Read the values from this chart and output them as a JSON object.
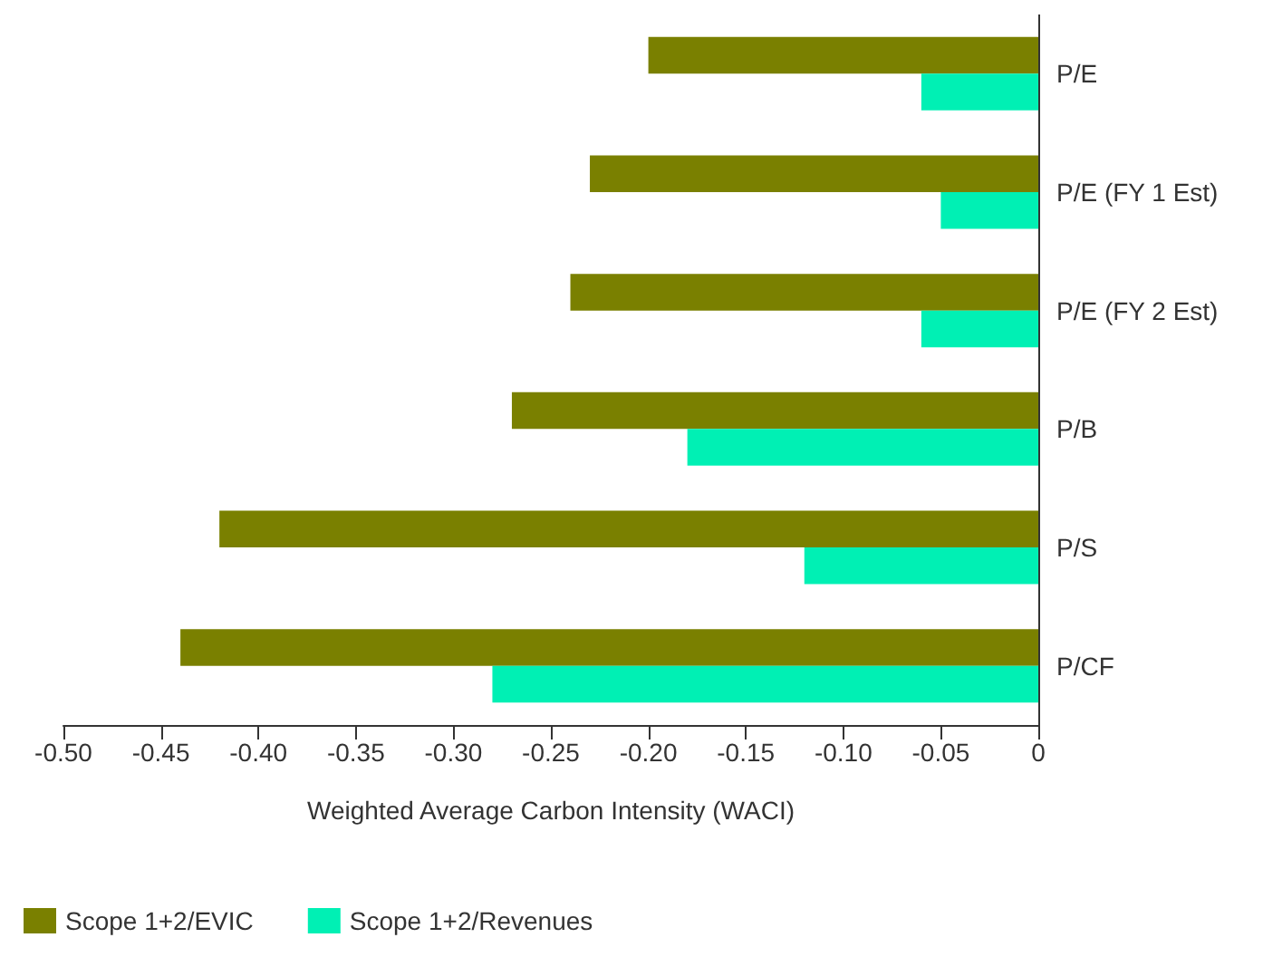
{
  "chart_data": {
    "type": "bar",
    "orientation": "horizontal",
    "xlabel": "Weighted Average Carbon Intensity (WACI)",
    "categories": [
      "P/E",
      "P/E (FY 1 Est)",
      "P/E (FY 2 Est)",
      "P/B",
      "P/S",
      "P/CF"
    ],
    "series": [
      {
        "name": "Scope 1+2/EVIC",
        "color": "#7a8000",
        "values": [
          -0.2,
          -0.23,
          -0.24,
          -0.27,
          -0.42,
          -0.44
        ]
      },
      {
        "name": "Scope 1+2/Revenues",
        "color": "#00f0b4",
        "values": [
          -0.06,
          -0.05,
          -0.06,
          -0.18,
          -0.12,
          -0.28
        ]
      }
    ],
    "xlim": [
      -0.5,
      0
    ],
    "xticks": [
      {
        "value": -0.5,
        "label": "-0.50"
      },
      {
        "value": -0.45,
        "label": "-0.45"
      },
      {
        "value": -0.4,
        "label": "-0.40"
      },
      {
        "value": -0.35,
        "label": "-0.35"
      },
      {
        "value": -0.3,
        "label": "-0.30"
      },
      {
        "value": -0.25,
        "label": "-0.25"
      },
      {
        "value": -0.2,
        "label": "-0.20"
      },
      {
        "value": -0.15,
        "label": "-0.15"
      },
      {
        "value": -0.1,
        "label": "-0.10"
      },
      {
        "value": -0.05,
        "label": "-0.05"
      },
      0
    ],
    "grid": false,
    "legend": "bottom left"
  }
}
